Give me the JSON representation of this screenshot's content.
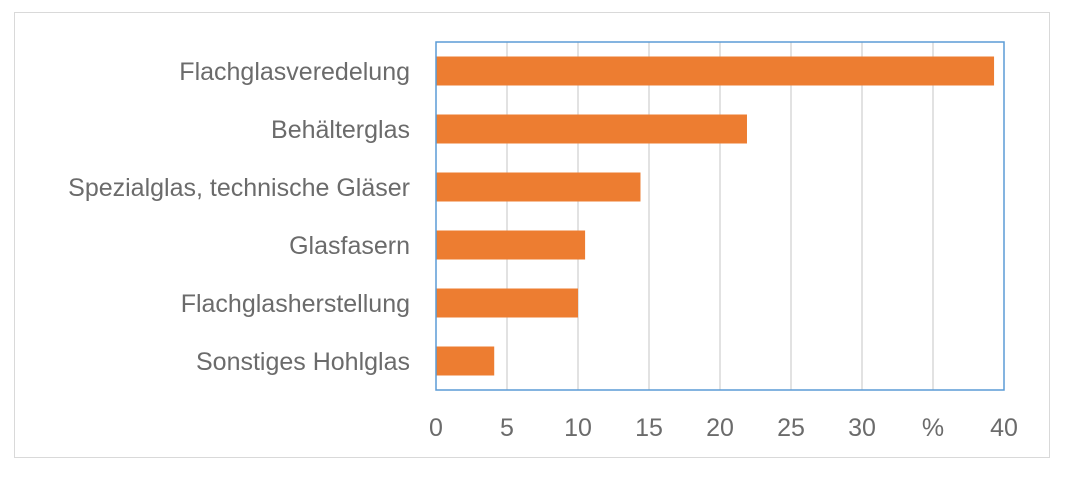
{
  "chart_data": {
    "type": "bar",
    "orientation": "horizontal",
    "title": "",
    "xlabel": "",
    "ylabel": "",
    "categories": [
      "Flachglasveredelung",
      "Behälterglas",
      "Spezialglas, technische Gläser",
      "Glasfasern",
      "Flachglasherstellung",
      "Sonstiges Hohlglas"
    ],
    "values": [
      39.3,
      21.9,
      14.4,
      10.5,
      10.0,
      4.1
    ],
    "xlim": [
      0,
      40
    ],
    "x_ticks": [
      "0",
      "5",
      "10",
      "15",
      "20",
      "25",
      "30",
      "%",
      "40"
    ],
    "grid": "vertical",
    "legend": "none",
    "colors": {
      "bar": "#ed7d31",
      "grid": "#d9d9d9",
      "axis": "#5b9bd5",
      "text": "#6b6b6b"
    }
  }
}
